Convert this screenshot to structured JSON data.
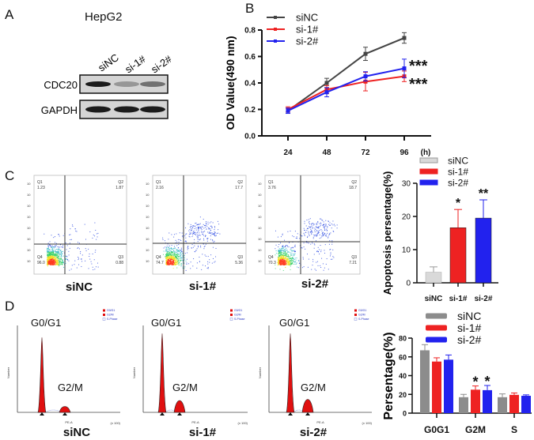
{
  "panels": {
    "a": "A",
    "b": "B",
    "c": "C",
    "d": "D"
  },
  "western_blot": {
    "title": "HepG2",
    "lanes": [
      "siNC",
      "si-1#",
      "si-2#"
    ],
    "proteins": [
      "CDC20",
      "GAPDH"
    ],
    "band_intensity": {
      "CDC20": [
        1.0,
        0.2,
        0.45
      ],
      "GAPDH": [
        1.0,
        1.0,
        1.0
      ]
    }
  },
  "chart_data": [
    {
      "type": "line",
      "ylabel": "OD Value(490 nm)",
      "x_unit": "(h)",
      "x": [
        24,
        48,
        72,
        96
      ],
      "yticks": [
        "0.0",
        "0.2",
        "0.4",
        "0.6",
        "0.8"
      ],
      "ylim": [
        0,
        0.8
      ],
      "legend_position": "top-left",
      "series": [
        {
          "name": "siNC",
          "color": "#444444",
          "values": [
            0.19,
            0.4,
            0.62,
            0.74
          ],
          "errors": [
            0.02,
            0.035,
            0.05,
            0.04
          ]
        },
        {
          "name": "si-1#",
          "color": "#ee2222",
          "values": [
            0.2,
            0.35,
            0.41,
            0.45
          ],
          "errors": [
            0.02,
            0.03,
            0.07,
            0.04
          ]
        },
        {
          "name": "si-2#",
          "color": "#2222ee",
          "values": [
            0.19,
            0.33,
            0.45,
            0.51
          ],
          "errors": [
            0.02,
            0.035,
            0.035,
            0.07
          ]
        }
      ],
      "annotations": [
        "***",
        "***"
      ]
    },
    {
      "type": "bar",
      "ylabel": "Apoptosis persentage(%)",
      "categories": [
        "siNC",
        "si-1#",
        "si-2#"
      ],
      "values": [
        3.2,
        16.6,
        19.5
      ],
      "errors": [
        1.6,
        5.5,
        5.5
      ],
      "colors": [
        "#d9d9d9",
        "#ee2222",
        "#2222ee"
      ],
      "yticks": [
        "0",
        "10",
        "20",
        "30"
      ],
      "ylim": [
        0,
        30
      ],
      "significance": [
        "",
        "*",
        "**"
      ],
      "legend": [
        "siNC",
        "si-1#",
        "si-2#"
      ],
      "legend_position": "top"
    },
    {
      "type": "bar",
      "ylabel": "Persentage(%)",
      "categories": [
        "G0G1",
        "G2M",
        "S"
      ],
      "series": [
        {
          "name": "siNC",
          "color": "#8c8c8c",
          "values": [
            67,
            17,
            17
          ],
          "errors": [
            6,
            3,
            3.5
          ]
        },
        {
          "name": "si-1#",
          "color": "#ee2222",
          "values": [
            55,
            25,
            19.5
          ],
          "errors": [
            4,
            4,
            2
          ]
        },
        {
          "name": "si-2#",
          "color": "#2222ee",
          "values": [
            57,
            24.5,
            18.5
          ],
          "errors": [
            5,
            5,
            1
          ]
        }
      ],
      "yticks": [
        "0",
        "20",
        "40",
        "60",
        "80"
      ],
      "ylim": [
        0,
        80
      ],
      "significance": {
        "G2M": [
          "",
          "*",
          "*"
        ]
      },
      "legend_position": "top"
    }
  ],
  "flow_plots": [
    {
      "label": "siNC",
      "Q1": "1.23",
      "Q2": "1.87",
      "Q3": "0.88",
      "Q4": "96.0"
    },
    {
      "label": "si-1#",
      "Q1": "2.16",
      "Q2": "17.7",
      "Q3": "5.36",
      "Q4": "74.7"
    },
    {
      "label": "si-2#",
      "Q1": "3.76",
      "Q2": "18.7",
      "Q3": "7.21",
      "Q4": "70.3"
    }
  ],
  "flow_quadrant_names": [
    "Q1",
    "Q2",
    "Q3",
    "Q4"
  ],
  "cell_cycle": {
    "peak_labels": [
      "G0/G1",
      "G2/M"
    ],
    "plots": [
      "siNC",
      "si-1#",
      "si-2#"
    ],
    "legend": [
      "G0/G1",
      "G2/M",
      "S-Phase"
    ],
    "xlabel": "PE-A",
    "ylabel": "Number",
    "x_unit": "(x 100)"
  }
}
